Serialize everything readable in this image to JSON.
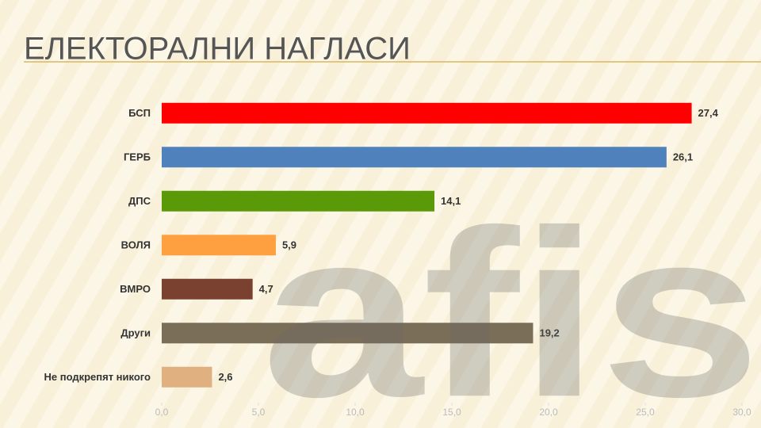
{
  "chart_data": {
    "type": "hbar",
    "title": "ЕЛЕКТОРАЛНИ НАГЛАСИ",
    "watermark": "afis",
    "categories": [
      "БСП",
      "ГЕРБ",
      "ДПС",
      "ВОЛЯ",
      "ВМРО",
      "Други",
      "Не подкрепят никого"
    ],
    "values": [
      27.4,
      26.1,
      14.1,
      5.9,
      4.7,
      19.2,
      2.6
    ],
    "value_labels": [
      "27,4",
      "26,1",
      "14,1",
      "5,9",
      "4,7",
      "19,2",
      "2,6"
    ],
    "colors": [
      "#ff0000",
      "#4f81bd",
      "#5a9a08",
      "#ffa040",
      "#7a4030",
      "#7a6e58",
      "#e0b080"
    ],
    "xlim": [
      0,
      30
    ],
    "xticks": [
      {
        "value": 0,
        "label": "0,0"
      },
      {
        "value": 5,
        "label": "5,0"
      },
      {
        "value": 10,
        "label": "10,0"
      },
      {
        "value": 15,
        "label": "15,0"
      },
      {
        "value": 20,
        "label": "20,0"
      },
      {
        "value": 25,
        "label": "25,0"
      },
      {
        "value": 30,
        "label": "30,0"
      }
    ],
    "grid": false
  }
}
